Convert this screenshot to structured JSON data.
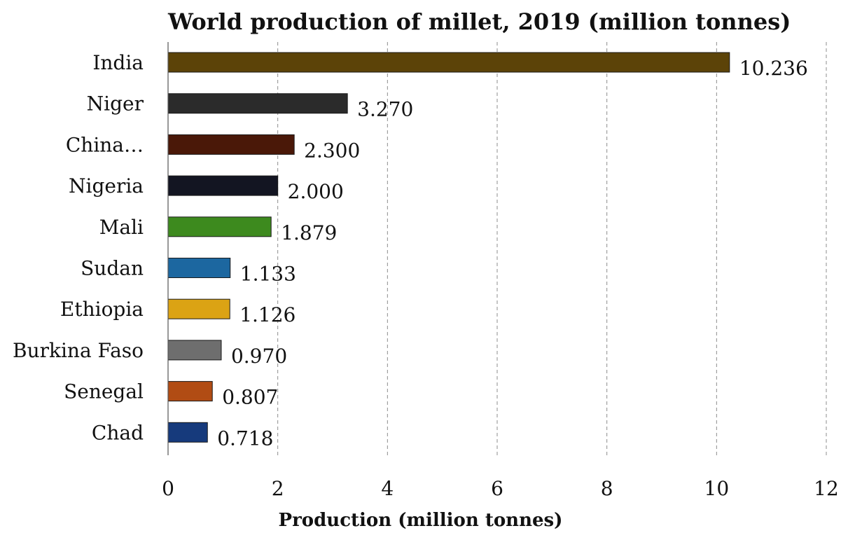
{
  "chart_data": {
    "type": "bar",
    "orientation": "horizontal",
    "title": "World  production of millet, 2019 (million tonnes)",
    "xlabel": "Production (million tonnes)",
    "ylabel": "",
    "xlim": [
      0,
      12
    ],
    "xticks": [
      0,
      2,
      4,
      6,
      8,
      10,
      12
    ],
    "grid": "vertical dashed",
    "categories": [
      "India",
      "Niger",
      "China…",
      "Nigeria",
      "Mali",
      "Sudan",
      "Ethiopia",
      "Burkina Faso",
      "Senegal",
      "Chad"
    ],
    "values": [
      10.236,
      3.27,
      2.3,
      2.0,
      1.879,
      1.133,
      1.126,
      0.97,
      0.807,
      0.718
    ],
    "value_labels": [
      "10.236",
      "3.270",
      "2.300",
      "2.000",
      "1.879",
      "1.133",
      "1.126",
      "0.970",
      "0.807",
      "0.718"
    ],
    "colors": [
      "#5c4308",
      "#2b2b2b",
      "#4a1808",
      "#131522",
      "#3d8a1e",
      "#1c67a0",
      "#dba314",
      "#6e6e6e",
      "#b14c14",
      "#163a7c"
    ]
  }
}
